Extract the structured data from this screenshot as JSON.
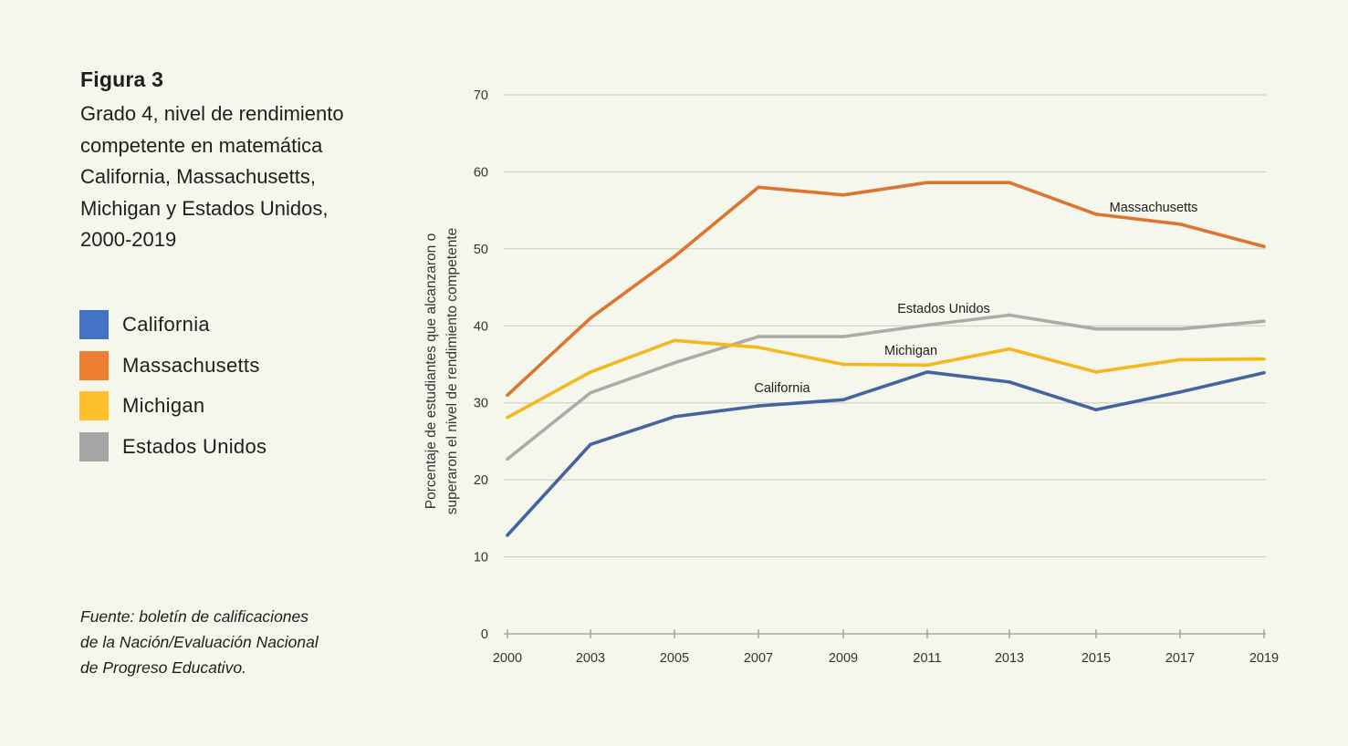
{
  "figure": {
    "label": "Figura 3",
    "title_lines": [
      "Grado 4, nivel de rendimiento",
      "competente en matemática",
      "California, Massachusetts,",
      "Michigan y Estados Unidos,",
      "2000-2019"
    ],
    "source_lines": [
      "Fuente: boletín de calificaciones",
      "de la Nación/Evaluación Nacional",
      "de Progreso Educativo."
    ]
  },
  "legend": [
    {
      "label": "California",
      "color": "#4472c4"
    },
    {
      "label": "Massachusetts",
      "color": "#ed7d31"
    },
    {
      "label": "Michigan",
      "color": "#ffc02d"
    },
    {
      "label": "Estados Unidos",
      "color": "#a5a5a5"
    }
  ],
  "chart_data": {
    "type": "line",
    "title": "",
    "ylabel_lines": [
      "Porcentaje de estudiantes que alcanzaron o",
      "superaron el nivel de rendimiento competente"
    ],
    "xlabel": "",
    "x": [
      "2000",
      "2003",
      "2005",
      "2007",
      "2009",
      "2011",
      "2013",
      "2015",
      "2017",
      "2019"
    ],
    "ylim": [
      0,
      70
    ],
    "yticks": [
      0,
      10,
      20,
      30,
      40,
      50,
      60,
      70
    ],
    "grid": true,
    "series": [
      {
        "name": "Massachusetts",
        "color": "#dd7430",
        "values": [
          31,
          41,
          49,
          58,
          57,
          58.6,
          58.6,
          54.5,
          53.2,
          50.3
        ]
      },
      {
        "name": "Estados Unidos",
        "color": "#ababab",
        "values": [
          22.7,
          31.3,
          35.2,
          38.6,
          38.6,
          40.1,
          41.4,
          39.6,
          39.6,
          40.6
        ]
      },
      {
        "name": "Michigan",
        "color": "#f2b81e",
        "values": [
          28.1,
          34,
          38.1,
          37.2,
          35,
          34.9,
          37,
          34,
          35.6,
          35.7
        ]
      },
      {
        "name": "California",
        "color": "#44639f",
        "values": [
          12.8,
          24.6,
          28.2,
          29.6,
          30.4,
          34,
          32.7,
          29.1,
          31.4,
          33.9
        ]
      }
    ],
    "annotations": [
      {
        "text": "Massachusetts",
        "series": "Massachusetts"
      },
      {
        "text": "Estados Unidos",
        "series": "Estados Unidos"
      },
      {
        "text": "Michigan",
        "series": "Michigan"
      },
      {
        "text": "California",
        "series": "California"
      }
    ]
  }
}
